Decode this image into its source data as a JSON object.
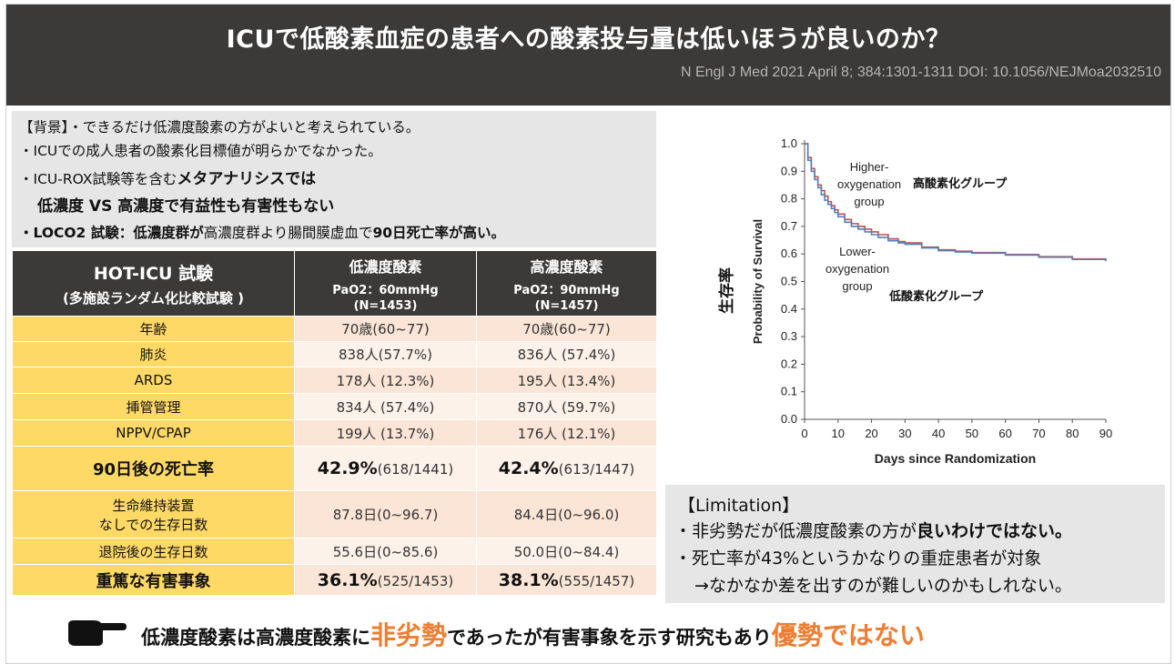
{
  "header": {
    "title": "ICUで低酸素血症の患者への酸素投与量は低いほうが良いのか？",
    "citation": "N Engl J Med 2021 April 8; 384:1301-1311 DOI: 10.1056/NEJMoa2032510"
  },
  "background": {
    "line1": "【背景】・できるだけ低濃度酸素の方がよいと考えられている。",
    "line2": "・ICUでの成人患者の酸素化目標値が明らかでなかった。",
    "line3_prefix": "・ICU-ROX試験等を含む",
    "line3_bold": "メタアナリシスでは",
    "line4": "低濃度 VS 高濃度で有益性も有害性もない",
    "line5_a": "・LOCO2 試験：低濃度群が",
    "line5_b": "高濃度群より腸間膜虚血で",
    "line5_c": "90日死亡率が高い。"
  },
  "table": {
    "head1_title": "HOT-ICU 試験",
    "head1_sub": "(多施設ランダム化比較試験 )",
    "head2_title": "低濃度酸素",
    "head2_sub1": "PaO2：60mmHg",
    "head2_sub2": "(N=1453)",
    "head3_title": "高濃度酸素",
    "head3_sub1": "PaO2：90mmHg",
    "head3_sub2": "(N=1457)",
    "rows": {
      "age": {
        "label": "年齢",
        "low": "70歳(60~77)",
        "high": "70歳(60~77)"
      },
      "pneumonia": {
        "label": "肺炎",
        "low": "838人(57.7%)",
        "high": "836人 (57.4%)"
      },
      "ards": {
        "label": "ARDS",
        "low": "178人 (12.3%)",
        "high": "195人 (13.4%)"
      },
      "intubation": {
        "label": "挿管管理",
        "low": "834人 (57.4%)",
        "high": "870人 (59.7%)"
      },
      "nppv": {
        "label": "NPPV/CPAP",
        "low": "199人 (13.7%)",
        "high": "176人 (12.1%)"
      },
      "mortality": {
        "label": "90日後の死亡率",
        "low_pct": "42.9%",
        "low_n": "(618/1441)",
        "high_pct": "42.4%",
        "high_n": "(613/1447)"
      },
      "life_support": {
        "label1": "生命維持装置",
        "label2": "なしでの生存日数",
        "low": "87.8日(0~96.7)",
        "high": "84.4日(0~96.0)"
      },
      "post_discharge": {
        "label": "退院後の生存日数",
        "low": "55.6日(0~85.6)",
        "high": "50.0日(0~84.4)"
      },
      "adverse": {
        "label": "重篤な有害事象",
        "low_pct": "36.1%",
        "low_n": "(525/1453)",
        "high_pct": "38.1%",
        "high_n": "(555/1457)"
      }
    }
  },
  "chart_data": {
    "type": "line",
    "ylabel": "Probability of Survival",
    "ylabel_jp": "生存率",
    "xlabel": "Days since Randomization",
    "xlim": [
      0,
      90
    ],
    "ylim": [
      0,
      1
    ],
    "x_ticks": [
      "0",
      "10",
      "20",
      "30",
      "40",
      "50",
      "60",
      "70",
      "80",
      "90"
    ],
    "y_ticks": [
      "0.0",
      "0.1",
      "0.2",
      "0.3",
      "0.4",
      "0.5",
      "0.6",
      "0.7",
      "0.8",
      "0.9",
      "1.0"
    ],
    "series": [
      {
        "name": "Higher-oxygenation group",
        "name_lines": [
          "Higher-",
          "oxygenation",
          "group"
        ],
        "label_jp": "高酸素化グループ",
        "color": "#c0504d",
        "x": [
          0,
          1,
          2,
          3,
          4,
          5,
          6,
          7,
          8,
          9,
          10,
          12,
          14,
          16,
          18,
          20,
          22,
          25,
          28,
          30,
          35,
          40,
          45,
          50,
          60,
          70,
          80,
          90
        ],
        "y": [
          1.0,
          0.95,
          0.91,
          0.88,
          0.85,
          0.83,
          0.81,
          0.79,
          0.775,
          0.76,
          0.745,
          0.725,
          0.71,
          0.7,
          0.69,
          0.68,
          0.67,
          0.655,
          0.645,
          0.64,
          0.625,
          0.615,
          0.61,
          0.605,
          0.598,
          0.59,
          0.582,
          0.575
        ]
      },
      {
        "name": "Lower-oxygenation group",
        "name_lines": [
          "Lower-",
          "oxygenation",
          "group"
        ],
        "label_jp": "低酸素化グループ",
        "color": "#4f81bd",
        "x": [
          0,
          1,
          2,
          3,
          4,
          5,
          6,
          7,
          8,
          9,
          10,
          12,
          14,
          16,
          18,
          20,
          22,
          25,
          28,
          30,
          35,
          40,
          45,
          50,
          60,
          70,
          80,
          90
        ],
        "y": [
          1.0,
          0.94,
          0.9,
          0.87,
          0.84,
          0.815,
          0.795,
          0.78,
          0.765,
          0.75,
          0.735,
          0.715,
          0.7,
          0.69,
          0.68,
          0.67,
          0.66,
          0.648,
          0.64,
          0.635,
          0.622,
          0.612,
          0.607,
          0.603,
          0.596,
          0.588,
          0.58,
          0.574
        ]
      }
    ]
  },
  "limitation": {
    "title": "【Limitation】",
    "l1_a": "・非劣勢だが低濃度酸素の方が",
    "l1_b": "良いわけではない。",
    "l2": "・死亡率が43%というかなりの重症患者が対象",
    "l3": "→なかなか差を出すのが難しいのかもしれない。"
  },
  "conclusion": {
    "part1": "低濃度酸素は高濃度酸素に",
    "part2": "非劣勢",
    "part3": "であったが有害事象を示す研究もあり",
    "part4": "優勢ではない"
  },
  "colors": {
    "accent": "#ed7d31",
    "header_bg": "#3b3a39",
    "label_yellow": "#ffd966",
    "value_peach": "#fbe5d6"
  }
}
